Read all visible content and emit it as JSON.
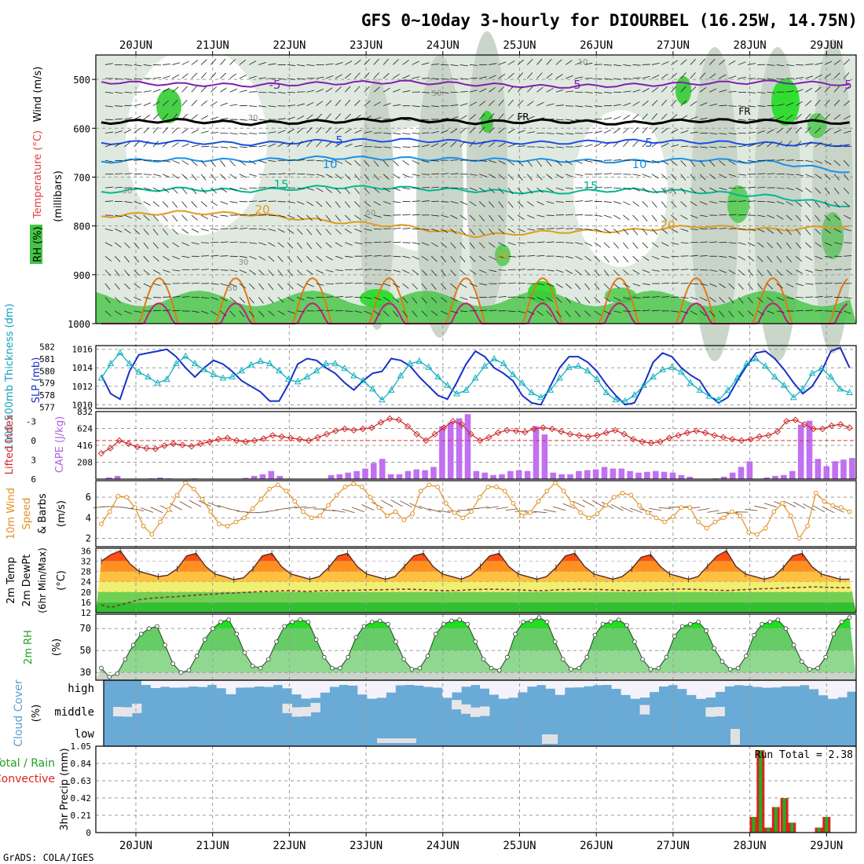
{
  "title": "GFS 0~10day 3-hourly for DIOURBEL (16.25W, 14.75N)",
  "credit": "GrADS: COLA/IGES",
  "chart_data": {
    "type": "meteogram",
    "date_labels": [
      "20JUN",
      "21JUN",
      "22JUN",
      "23JUN",
      "24JUN",
      "25JUN",
      "26JUN",
      "27JUN",
      "28JUN",
      "29JUN"
    ],
    "time_range_days": [
      -0.45,
      9.3
    ],
    "panels": {
      "profile": {
        "ylabel_words": [
          "Wind (m/s)",
          "Temperature (°C)",
          "RH (%)"
        ],
        "ylabel_units": "(millibars)",
        "ytick_labels": [
          "500",
          "600",
          "700",
          "800",
          "900",
          "1000"
        ],
        "ylim": [
          1000,
          450
        ],
        "temperature_contours": [
          {
            "label": "-5",
            "color": "#8020b0",
            "level_mb": [
              505,
              510,
              512,
              508,
              505,
              510,
              515,
              512,
              508,
              505,
              510
            ]
          },
          {
            "label": "FR",
            "color": "#000000",
            "level_mb": [
              588,
              584,
              590,
              586,
              582,
              588,
              585,
              590,
              584,
              586,
              588
            ]
          },
          {
            "label": "5",
            "color": "#1a50e0",
            "level_mb": [
              630,
              628,
              632,
              626,
              624,
              628,
              630,
              626,
              628,
              632,
              634
            ]
          },
          {
            "label": "10",
            "color": "#1890e8",
            "level_mb": [
              668,
              664,
              666,
              660,
              662,
              664,
              666,
              668,
              664,
              670,
              690
            ]
          },
          {
            "label": "15",
            "color": "#00b890",
            "level_mb": [
              730,
              724,
              728,
              720,
              722,
              728,
              732,
              726,
              730,
              740,
              760
            ]
          },
          {
            "label": "20",
            "color": "#e09a20",
            "level_mb": [
              780,
              772,
              776,
              790,
              800,
              820,
              812,
              810,
              800,
              808,
              800
            ]
          }
        ],
        "inline_labels": [
          "-5",
          "5",
          "5",
          "FR",
          "FR",
          "5",
          "5",
          "10",
          "10",
          "15",
          "15",
          "20",
          "20",
          "20",
          "10",
          "30",
          "30",
          "30",
          "50",
          "50",
          "50",
          "50"
        ]
      },
      "slp_thickness": {
        "ylabel_left": "1000-500mb Thickness (dm)",
        "ylabel_right": "SLP (mb)",
        "thickness_ticks": [
          "582",
          "581",
          "580",
          "579",
          "578",
          "577"
        ],
        "slp_ticks": [
          "1016",
          "1014",
          "1012",
          "1010"
        ],
        "slp_mb": [
          1013.2,
          1011.2,
          1010.6,
          1013.6,
          1015.4,
          1015.6,
          1015.8,
          1016.0,
          1015.2,
          1014.0,
          1013.0,
          1014.0,
          1014.8,
          1014.4,
          1013.6,
          1012.6,
          1012.0,
          1011.4,
          1010.4,
          1010.4,
          1012.2,
          1014.4,
          1015.0,
          1014.8,
          1014.0,
          1013.4,
          1012.4,
          1011.6,
          1012.6,
          1013.4,
          1013.6,
          1015.0,
          1014.8,
          1014.2,
          1013.0,
          1012.0,
          1011.0,
          1010.6,
          1012.4,
          1014.4,
          1015.8,
          1015.2,
          1014.0,
          1013.4,
          1012.6,
          1011.0,
          1010.2,
          1010.0,
          1012.0,
          1014.0,
          1015.2,
          1015.2,
          1014.6,
          1013.6,
          1012.2,
          1011.0,
          1010.0,
          1010.2,
          1012.2,
          1014.6,
          1015.6,
          1015.2,
          1014.0,
          1013.2,
          1012.6,
          1011.0,
          1010.2,
          1010.8,
          1012.6,
          1014.2,
          1015.6,
          1015.8,
          1015.0,
          1013.8,
          1012.4,
          1011.2,
          1012.0,
          1013.6,
          1015.8,
          1016.2,
          1014.0
        ],
        "thickness_dm": [
          579.4,
          580.6,
          581.5,
          580.6,
          579.9,
          579.5,
          579.0,
          579.3,
          580.6,
          581.2,
          580.6,
          580.1,
          579.7,
          579.4,
          579.5,
          580.0,
          580.5,
          580.8,
          580.6,
          580.0,
          579.3,
          579.1,
          579.5,
          580.0,
          580.6,
          580.6,
          580.2,
          579.6,
          579.2,
          578.5,
          577.6,
          578.4,
          579.6,
          580.6,
          580.8,
          580.3,
          579.5,
          578.8,
          578.1,
          578.4,
          579.4,
          580.4,
          581.0,
          580.6,
          579.7,
          579.0,
          578.2,
          577.8,
          578.4,
          579.4,
          580.3,
          580.4,
          580.0,
          579.3,
          578.2,
          577.6,
          577.5,
          578.0,
          578.8,
          579.5,
          580.1,
          580.3,
          579.9,
          579.0,
          578.4,
          577.9,
          577.6,
          578.4,
          579.4,
          580.6,
          581.0,
          580.4,
          579.5,
          578.8,
          577.8,
          578.5,
          579.8,
          580.2,
          579.5,
          578.5,
          578.2
        ]
      },
      "cape_li": {
        "ylabel_left": "Lifted Index",
        "ylabel_right": "CAPE (J/kg)",
        "li_ticks": [
          "-3",
          "0",
          "3",
          "6"
        ],
        "cape_ticks": [
          "832",
          "624",
          "416",
          "208"
        ],
        "cape_jkg": [
          0,
          20,
          40,
          0,
          0,
          0,
          10,
          20,
          10,
          0,
          5,
          10,
          0,
          0,
          0,
          0,
          5,
          15,
          40,
          60,
          100,
          40,
          0,
          0,
          0,
          0,
          0,
          50,
          60,
          80,
          100,
          130,
          200,
          250,
          60,
          60,
          100,
          120,
          110,
          150,
          650,
          700,
          750,
          800,
          100,
          80,
          50,
          60,
          100,
          110,
          100,
          650,
          550,
          80,
          60,
          60,
          100,
          110,
          120,
          150,
          130,
          130,
          100,
          80,
          90,
          100,
          90,
          80,
          50,
          30,
          0,
          0,
          10,
          30,
          80,
          150,
          220,
          0,
          20,
          40,
          50,
          100,
          670,
          720,
          250,
          160,
          220,
          240,
          260
        ],
        "li_value": [
          2,
          1.2,
          0,
          0.5,
          1,
          1.2,
          1.3,
          0.8,
          0.5,
          0.7,
          0.9,
          0.5,
          0.2,
          -0.2,
          -0.4,
          0,
          0.2,
          0,
          -0.3,
          -0.8,
          -0.6,
          -0.4,
          -0.2,
          0,
          -0.5,
          -1,
          -1.5,
          -1.8,
          -1.6,
          -1.8,
          -2,
          -2.8,
          -3.4,
          -3.2,
          -2.2,
          -1,
          0,
          -1,
          -2,
          -3,
          -2.5,
          -1,
          0,
          -0.5,
          -1.2,
          -1.6,
          -1.5,
          -1.3,
          -1.8,
          -2,
          -1.8,
          -1.4,
          -1,
          -0.8,
          -0.6,
          -0.8,
          -1.2,
          -1.6,
          -1,
          -0.2,
          0.2,
          0.4,
          0.2,
          -0.4,
          -0.8,
          -1.2,
          -1.5,
          -1.2,
          -0.8,
          -0.5,
          -0.2,
          0,
          -0.2,
          -0.6,
          -0.8,
          -1.4,
          -3,
          -3.2,
          -2.5,
          -1.8,
          -1.8,
          -2.3,
          -2.5,
          -2
        ]
      },
      "wind10m": {
        "ylabel_words": [
          "10m Wind",
          "Speed",
          "& Barbs"
        ],
        "ylabel_units": "(m/s)",
        "yticks": [
          "2",
          "4",
          "6"
        ],
        "ylim": [
          1.2,
          7.6
        ],
        "speed_ms": [
          3.4,
          4.6,
          6.1,
          6.0,
          5.0,
          3.2,
          2.4,
          3.6,
          4.8,
          6.2,
          7.4,
          6.8,
          5.8,
          4.6,
          3.4,
          3.2,
          3.6,
          4.0,
          4.9,
          5.8,
          6.8,
          7.2,
          6.6,
          5.6,
          4.6,
          4.0,
          4.2,
          5.2,
          6.2,
          7.0,
          7.3,
          7.0,
          6.0,
          5.0,
          4.2,
          4.6,
          3.8,
          4.4,
          6.6,
          7.2,
          7.0,
          5.4,
          4.5,
          4.0,
          4.6,
          6.0,
          7.0,
          7.0,
          6.6,
          5.4,
          4.2,
          4.5,
          5.6,
          6.6,
          7.4,
          6.6,
          5.4,
          4.5,
          4.0,
          4.4,
          5.2,
          6.0,
          6.4,
          6.2,
          5.2,
          4.5,
          4.0,
          3.6,
          4.1,
          5.0,
          5.0,
          3.6,
          3.0,
          3.6,
          4.0,
          4.6,
          4.2,
          2.6,
          2.4,
          3.0,
          4.6,
          5.4,
          4.2,
          2.0,
          3.2,
          6.4,
          5.6,
          5.2,
          5.0,
          4.6
        ]
      },
      "temp2m": {
        "ylabel_words": [
          "2m Temp",
          "2m DewPt",
          "(6hr Min/Max)"
        ],
        "ylabel_units": "(°C)",
        "yticks": [
          "12",
          "16",
          "20",
          "24",
          "28",
          "32",
          "36"
        ],
        "ylim": [
          12,
          37
        ],
        "temp_c": [
          32,
          34.5,
          36,
          31,
          28,
          27,
          26,
          26.5,
          29,
          34,
          35,
          30,
          27,
          26,
          24.8,
          25.5,
          29,
          34,
          35,
          30,
          27,
          26,
          25,
          26,
          29.5,
          34,
          35,
          30,
          27,
          26,
          25,
          26,
          30,
          34,
          35,
          30,
          27,
          26,
          25,
          26.5,
          30,
          34,
          35,
          30,
          27,
          26,
          25,
          26,
          29.5,
          34,
          35,
          30,
          27,
          26,
          25,
          26,
          29,
          33.5,
          34.5,
          30,
          27,
          26,
          25,
          26,
          30,
          34,
          36,
          30,
          27,
          26,
          25,
          26,
          29.5,
          34,
          35,
          30,
          27,
          26,
          25,
          25
        ],
        "dewpoint_c": [
          15,
          14,
          15,
          16,
          17,
          17.5,
          17.8,
          18,
          18.2,
          18.5,
          18.8,
          19,
          19.2,
          19.5,
          19.6,
          19.8,
          20,
          20.2,
          20.3,
          20.4,
          20.5,
          20.4,
          20.2,
          20.4,
          20.5,
          20.6,
          20.6,
          20.7,
          20.8,
          20.8,
          20.9,
          21,
          21.1,
          21.1,
          21,
          20.8,
          20.6,
          20.5,
          20.6,
          20.8,
          21,
          21.1,
          21.1,
          21,
          20.9,
          20.8,
          20.6,
          20.5,
          20.7,
          20.9,
          21,
          21.1,
          21.1,
          21,
          20.9,
          20.7,
          20.6,
          20.5,
          20.7,
          20.8,
          21,
          21.1,
          21.2,
          21.1,
          21,
          20.8,
          20.7,
          20.6,
          20.8,
          21,
          21.2,
          21.3,
          21.4,
          21.6,
          21.7,
          21.8,
          22,
          21.9,
          21.8,
          21.7,
          21.7
        ]
      },
      "rh2m": {
        "ylabel_words": [
          "2m RH"
        ],
        "ylabel_units": "(%)",
        "yticks": [
          "30",
          "50",
          "70"
        ],
        "ylim": [
          23,
          83
        ],
        "rh_pct": [
          34,
          26,
          29,
          42,
          55,
          65,
          70,
          72,
          55,
          38,
          30,
          32,
          45,
          60,
          70,
          76,
          78,
          65,
          48,
          36,
          34,
          42,
          58,
          72,
          76,
          78,
          76,
          60,
          44,
          34,
          34,
          44,
          62,
          72,
          76,
          77,
          74,
          58,
          42,
          33,
          34,
          45,
          65,
          74,
          77,
          78,
          74,
          58,
          42,
          34,
          32,
          44,
          65,
          76,
          77,
          80,
          76,
          58,
          42,
          33,
          34,
          44,
          64,
          74,
          76,
          78,
          73,
          58,
          42,
          33,
          34,
          44,
          63,
          72,
          74,
          76,
          68,
          52,
          40,
          33,
          34,
          45,
          64,
          74,
          76,
          78,
          70,
          55,
          40,
          33,
          34,
          44,
          65,
          76,
          80
        ]
      },
      "cloud": {
        "ylabel_words": [
          "Cloud Cover"
        ],
        "ylabel_units": "(%)",
        "layer_labels": [
          "high",
          "middle",
          "low"
        ]
      },
      "precip": {
        "ylabel_words": [
          "Total / Rain",
          "Convective"
        ],
        "ylabel_units": "3hr Precip (mm)",
        "yticks": [
          "0",
          "0.21",
          "0.42",
          "0.63",
          "0.84",
          "1.05"
        ],
        "run_total_label": "Run Total = 2.38",
        "bars_mm": [
          {
            "d": 8.05,
            "v": 0.19
          },
          {
            "d": 8.14,
            "v": 1.0
          },
          {
            "d": 8.24,
            "v": 0.06
          },
          {
            "d": 8.34,
            "v": 0.31
          },
          {
            "d": 8.45,
            "v": 0.42
          },
          {
            "d": 8.55,
            "v": 0.12
          },
          {
            "d": 8.9,
            "v": 0.06
          },
          {
            "d": 9.0,
            "v": 0.19
          }
        ]
      }
    }
  }
}
